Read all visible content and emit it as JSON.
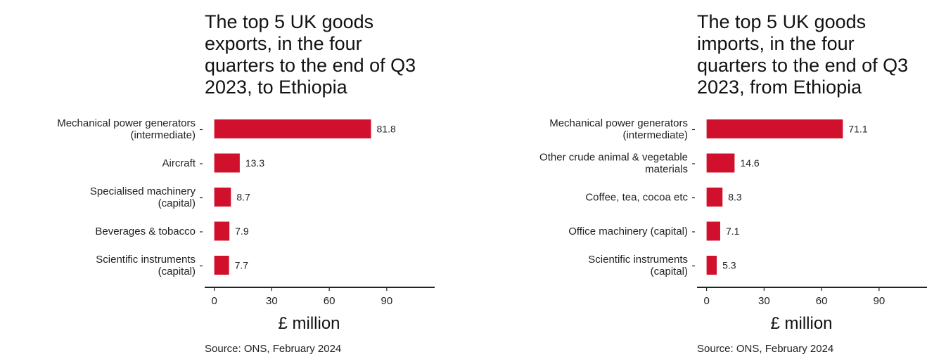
{
  "colors": {
    "bar": "#d0102d",
    "axis": "#222222",
    "text": "#222222"
  },
  "chart_data": [
    {
      "type": "bar",
      "orientation": "horizontal",
      "title": "The top 5 UK goods exports, in the four quarters to the end of Q3 2023, to Ethiopia",
      "title_lines": [
        "The top 5 UK goods",
        "exports, in the four",
        "quarters to the end of Q3",
        "2023, to Ethiopia"
      ],
      "categories": [
        [
          "Mechanical power generators",
          "(intermediate)"
        ],
        [
          "Aircraft"
        ],
        [
          "Specialised machinery",
          "(capital)"
        ],
        [
          "Beverages & tobacco"
        ],
        [
          "Scientific instruments",
          "(capital)"
        ]
      ],
      "values": [
        81.8,
        13.3,
        8.7,
        7.9,
        7.7
      ],
      "value_labels": [
        "81.8",
        "13.3",
        "8.7",
        "7.9",
        "7.7"
      ],
      "xlabel": "£ million",
      "xticks": [
        0,
        30,
        60,
        90
      ],
      "xlim": [
        -5,
        115
      ],
      "grid": false,
      "source": "Source: ONS, February 2024"
    },
    {
      "type": "bar",
      "orientation": "horizontal",
      "title": "The top 5 UK goods imports, in the four quarters to the end of Q3 2023, from Ethiopia",
      "title_lines": [
        "The top 5 UK goods",
        "imports, in the four",
        "quarters to the end of Q3",
        "2023, from Ethiopia"
      ],
      "categories": [
        [
          "Mechanical power generators",
          "(intermediate)"
        ],
        [
          "Other crude animal & vegetable",
          "materials"
        ],
        [
          "Coffee, tea, cocoa etc"
        ],
        [
          "Office machinery (capital)"
        ],
        [
          "Scientific instruments",
          "(capital)"
        ]
      ],
      "values": [
        71.1,
        14.6,
        8.3,
        7.1,
        5.3
      ],
      "value_labels": [
        "71.1",
        "14.6",
        "8.3",
        "7.1",
        "5.3"
      ],
      "xlabel": "£ million",
      "xticks": [
        0,
        30,
        60,
        90
      ],
      "xlim": [
        -5,
        115
      ],
      "grid": false,
      "source": "Source: ONS, February 2024"
    }
  ]
}
